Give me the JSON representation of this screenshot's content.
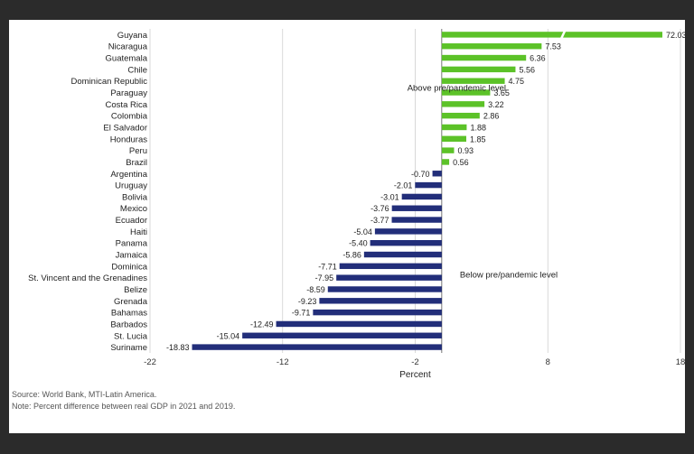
{
  "chart_data": {
    "type": "bar",
    "orientation": "horizontal",
    "categories": [
      "Guyana",
      "Nicaragua",
      "Guatemala",
      "Chile",
      "Dominican Republic",
      "Paraguay",
      "Costa Rica",
      "Colombia",
      "El Salvador",
      "Honduras",
      "Peru",
      "Brazil",
      "Argentina",
      "Uruguay",
      "Bolivia",
      "Mexico",
      "Ecuador",
      "Haiti",
      "Panama",
      "Jamaica",
      "Dominica",
      "St. Vincent and the Grenadines",
      "Belize",
      "Grenada",
      "Bahamas",
      "Barbados",
      "St. Lucia",
      "Suriname"
    ],
    "values": [
      72.03,
      7.53,
      6.36,
      5.56,
      4.75,
      3.65,
      3.22,
      2.86,
      1.88,
      1.85,
      0.93,
      0.56,
      -0.7,
      -2.01,
      -3.01,
      -3.76,
      -3.77,
      -5.04,
      -5.4,
      -5.86,
      -7.71,
      -7.95,
      -8.59,
      -9.23,
      -9.71,
      -12.49,
      -15.04,
      -18.83
    ],
    "value_labels": [
      "72.03",
      "7.53",
      "6.36",
      "5.56",
      "4.75",
      "3.65",
      "3.22",
      "2.86",
      "1.88",
      "1.85",
      "0.93",
      "0.56",
      "-0.70",
      "-2.01",
      "-3.01",
      "-3.76",
      "-3.77",
      "-5.04",
      "-5.40",
      "-5.86",
      "-7.71",
      "-7.95",
      "-8.59",
      "-9.23",
      "-9.71",
      "-12.49",
      "-15.04",
      "-18.83"
    ],
    "xlabel": "Percent",
    "xlim": [
      -22,
      18
    ],
    "xticks": [
      -22,
      -12,
      -2,
      8,
      18
    ],
    "axis_break": true,
    "annotations": [
      "Above pre/pandemic level",
      "Below pre/pandemic level"
    ],
    "colors": {
      "positive": "#5cc228",
      "negative": "#222e7a"
    },
    "grid": "vertical"
  },
  "notes": {
    "source": "Source: World Bank, MTI-Latin America.",
    "note": "Note: Percent difference between real GDP in 2021 and 2019."
  }
}
